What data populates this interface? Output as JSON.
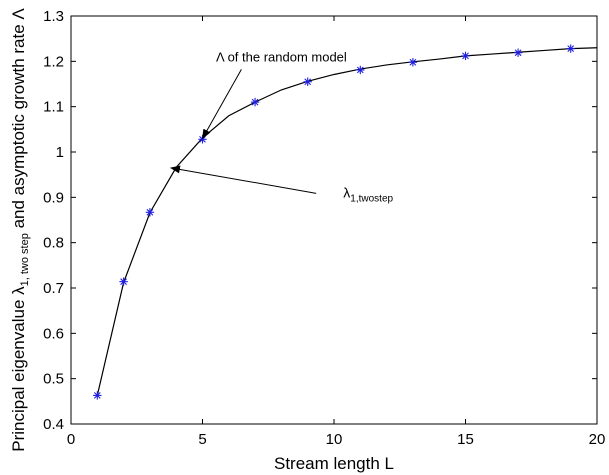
{
  "chart_data": {
    "type": "line",
    "xlabel": "Stream length L",
    "ylabel": {
      "pre": "Principal eigenvalue λ",
      "sub": "1, two step",
      "post": " and asymptotic growth rate Λ"
    },
    "xlim": [
      0,
      20
    ],
    "ylim": [
      0.4,
      1.3
    ],
    "xticks": [
      0,
      5,
      10,
      15,
      20
    ],
    "yticks": [
      0.4,
      0.5,
      0.6,
      0.7,
      0.8,
      0.9,
      1.0,
      1.1,
      1.2,
      1.3
    ],
    "xtick_labels": [
      "0",
      "5",
      "10",
      "15",
      "20"
    ],
    "ytick_labels": [
      "0.4",
      "0.5",
      "0.6",
      "0.7",
      "0.8",
      "0.9",
      "1",
      "1.1",
      "1.2",
      "1.3"
    ],
    "grid": false,
    "series": [
      {
        "style": "line",
        "color": "#000000",
        "x": [
          1,
          2,
          3,
          4,
          5,
          6,
          7,
          8,
          9,
          10,
          11,
          12,
          13,
          14,
          15,
          16,
          17,
          18,
          19,
          20
        ],
        "y": [
          0.463,
          0.712,
          0.866,
          0.966,
          1.031,
          1.08,
          1.11,
          1.137,
          1.156,
          1.171,
          1.183,
          1.192,
          1.199,
          1.205,
          1.212,
          1.216,
          1.22,
          1.224,
          1.228,
          1.23
        ]
      },
      {
        "style": "markers",
        "marker": "asterisk",
        "color": "#1f1fe0",
        "x": [
          1,
          2,
          3,
          5,
          7,
          9,
          11,
          13,
          15,
          17,
          19
        ],
        "y": [
          0.463,
          0.714,
          0.867,
          1.028,
          1.11,
          1.155,
          1.181,
          1.198,
          1.212,
          1.219,
          1.228
        ]
      }
    ],
    "annotations": [
      {
        "text": "Λ of the random model",
        "x": 8,
        "y": 1.2,
        "arrow_to": [
          5,
          1.03
        ]
      },
      {
        "text_main": "λ",
        "text_sub": "1,twostep",
        "x": 11.3,
        "y": 0.9,
        "arrow_to": [
          3.8,
          0.965
        ]
      }
    ]
  }
}
